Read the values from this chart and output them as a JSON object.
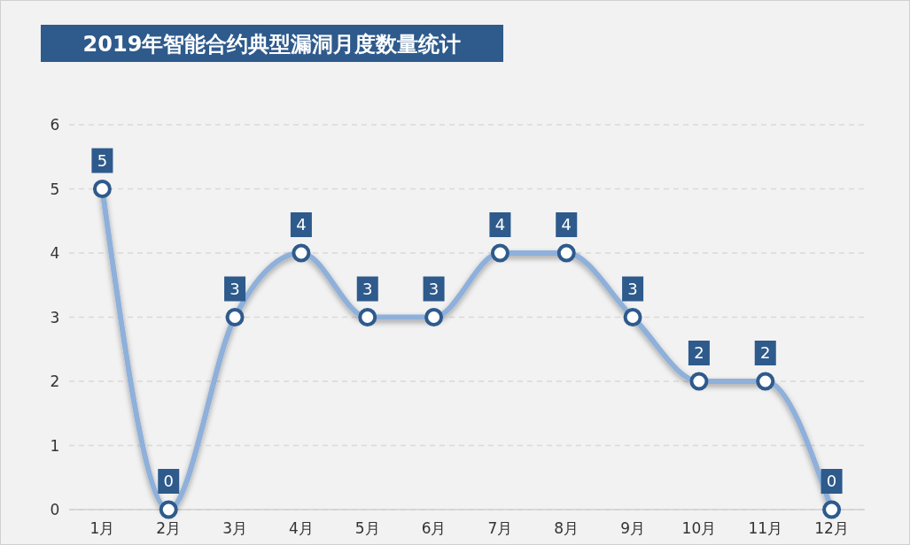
{
  "chart_data": {
    "type": "line",
    "title": "2019年智能合约典型漏洞月度数量统计",
    "categories": [
      "1月",
      "2月",
      "3月",
      "4月",
      "5月",
      "6月",
      "7月",
      "8月",
      "9月",
      "10月",
      "11月",
      "12月"
    ],
    "series": [
      {
        "color": "#8eb0da",
        "values": [
          5,
          0,
          3,
          4,
          3,
          3,
          4,
          4,
          3,
          2,
          2,
          0
        ]
      }
    ],
    "ylim": [
      0,
      6
    ],
    "yticks": [
      0,
      1,
      2,
      3,
      4,
      5,
      6
    ],
    "grid": "y",
    "marker": "circle",
    "data_labels": true
  }
}
